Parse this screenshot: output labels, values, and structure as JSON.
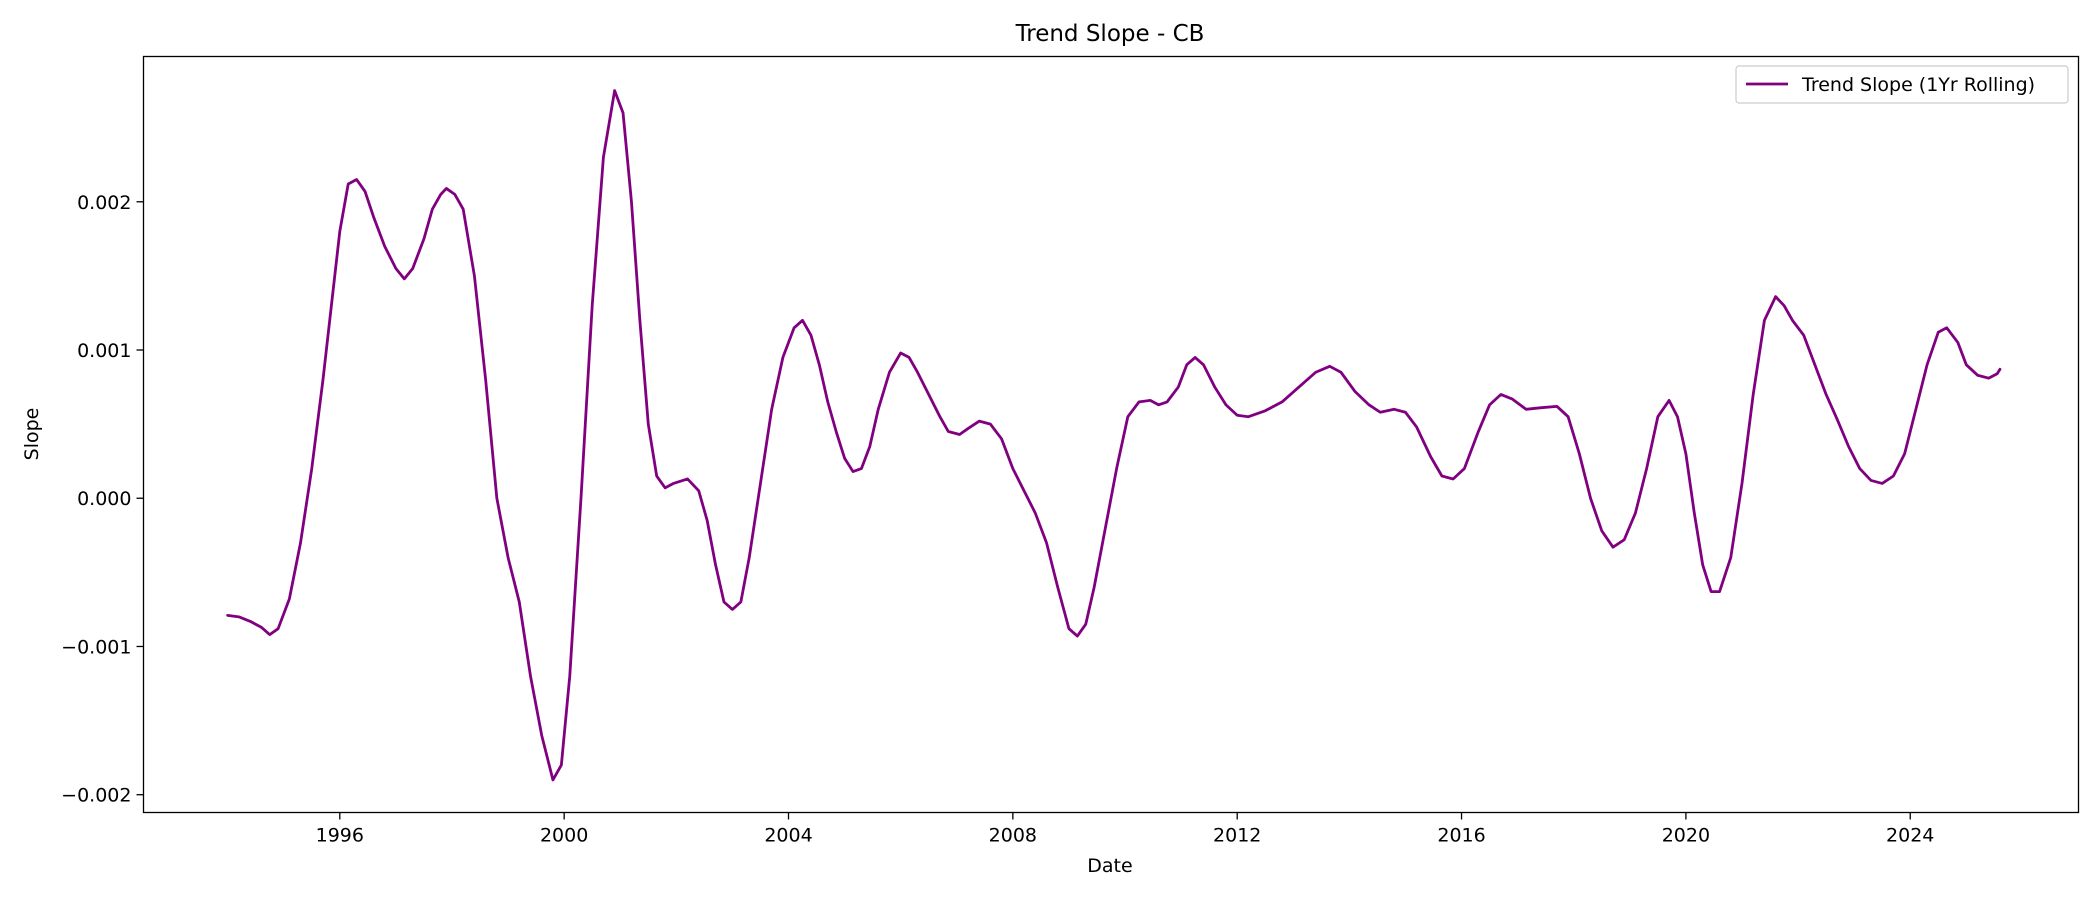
{
  "chart_data": {
    "type": "line",
    "title": "Trend Slope - CB",
    "xlabel": "Date",
    "ylabel": "Slope",
    "xlim": [
      1992.5,
      2027.0
    ],
    "ylim": [
      -0.00212,
      0.00298
    ],
    "x_ticks": [
      1996,
      2000,
      2004,
      2008,
      2012,
      2016,
      2020,
      2024
    ],
    "x_tick_labels": [
      "1996",
      "2000",
      "2004",
      "2008",
      "2012",
      "2016",
      "2020",
      "2024"
    ],
    "y_ticks": [
      -0.002,
      -0.001,
      0.0,
      0.001,
      0.002
    ],
    "y_tick_labels": [
      "−0.002",
      "−0.001",
      "0.000",
      "0.001",
      "0.002"
    ],
    "grid": false,
    "legend_position": "top-right",
    "series": [
      {
        "name": "Trend Slope (1Yr Rolling)",
        "color": "#800080",
        "points": [
          [
            1994.0,
            -0.00079
          ],
          [
            1994.2,
            -0.0008
          ],
          [
            1994.4,
            -0.00083
          ],
          [
            1994.6,
            -0.00087
          ],
          [
            1994.75,
            -0.00092
          ],
          [
            1994.9,
            -0.00088
          ],
          [
            1995.1,
            -0.00068
          ],
          [
            1995.3,
            -0.0003
          ],
          [
            1995.5,
            0.0002
          ],
          [
            1995.7,
            0.0008
          ],
          [
            1995.85,
            0.0013
          ],
          [
            1996.0,
            0.0018
          ],
          [
            1996.15,
            0.00212
          ],
          [
            1996.3,
            0.00215
          ],
          [
            1996.45,
            0.00207
          ],
          [
            1996.6,
            0.0019
          ],
          [
            1996.8,
            0.0017
          ],
          [
            1997.0,
            0.00155
          ],
          [
            1997.15,
            0.00148
          ],
          [
            1997.3,
            0.00155
          ],
          [
            1997.5,
            0.00175
          ],
          [
            1997.65,
            0.00195
          ],
          [
            1997.8,
            0.00205
          ],
          [
            1997.9,
            0.00209
          ],
          [
            1998.05,
            0.00205
          ],
          [
            1998.2,
            0.00195
          ],
          [
            1998.4,
            0.0015
          ],
          [
            1998.6,
            0.0008
          ],
          [
            1998.8,
            0.0
          ],
          [
            1999.0,
            -0.0004
          ],
          [
            1999.2,
            -0.0007
          ],
          [
            1999.4,
            -0.0012
          ],
          [
            1999.6,
            -0.0016
          ],
          [
            1999.8,
            -0.0019
          ],
          [
            1999.95,
            -0.0018
          ],
          [
            2000.1,
            -0.0012
          ],
          [
            2000.3,
            0.0
          ],
          [
            2000.5,
            0.0013
          ],
          [
            2000.7,
            0.0023
          ],
          [
            2000.9,
            0.00275
          ],
          [
            2001.05,
            0.0026
          ],
          [
            2001.2,
            0.002
          ],
          [
            2001.35,
            0.0012
          ],
          [
            2001.5,
            0.0005
          ],
          [
            2001.65,
            0.00015
          ],
          [
            2001.8,
            7e-05
          ],
          [
            2001.95,
            0.0001
          ],
          [
            2002.2,
            0.00013
          ],
          [
            2002.4,
            5e-05
          ],
          [
            2002.55,
            -0.00015
          ],
          [
            2002.7,
            -0.00045
          ],
          [
            2002.85,
            -0.0007
          ],
          [
            2003.0,
            -0.00075
          ],
          [
            2003.15,
            -0.0007
          ],
          [
            2003.3,
            -0.0004
          ],
          [
            2003.5,
            0.0001
          ],
          [
            2003.7,
            0.0006
          ],
          [
            2003.9,
            0.00095
          ],
          [
            2004.1,
            0.00115
          ],
          [
            2004.25,
            0.0012
          ],
          [
            2004.4,
            0.0011
          ],
          [
            2004.55,
            0.0009
          ],
          [
            2004.7,
            0.00065
          ],
          [
            2004.85,
            0.00045
          ],
          [
            2005.0,
            0.00027
          ],
          [
            2005.15,
            0.00018
          ],
          [
            2005.3,
            0.0002
          ],
          [
            2005.45,
            0.00035
          ],
          [
            2005.6,
            0.0006
          ],
          [
            2005.8,
            0.00085
          ],
          [
            2006.0,
            0.00098
          ],
          [
            2006.15,
            0.00095
          ],
          [
            2006.3,
            0.00085
          ],
          [
            2006.5,
            0.0007
          ],
          [
            2006.7,
            0.00055
          ],
          [
            2006.85,
            0.00045
          ],
          [
            2007.05,
            0.00043
          ],
          [
            2007.2,
            0.00047
          ],
          [
            2007.4,
            0.00052
          ],
          [
            2007.6,
            0.0005
          ],
          [
            2007.8,
            0.0004
          ],
          [
            2008.0,
            0.0002
          ],
          [
            2008.2,
            5e-05
          ],
          [
            2008.4,
            -0.0001
          ],
          [
            2008.6,
            -0.0003
          ],
          [
            2008.8,
            -0.0006
          ],
          [
            2009.0,
            -0.00088
          ],
          [
            2009.15,
            -0.00093
          ],
          [
            2009.3,
            -0.00085
          ],
          [
            2009.45,
            -0.0006
          ],
          [
            2009.65,
            -0.0002
          ],
          [
            2009.85,
            0.0002
          ],
          [
            2010.05,
            0.00055
          ],
          [
            2010.25,
            0.00065
          ],
          [
            2010.45,
            0.00066
          ],
          [
            2010.6,
            0.00063
          ],
          [
            2010.75,
            0.00065
          ],
          [
            2010.95,
            0.00075
          ],
          [
            2011.1,
            0.0009
          ],
          [
            2011.25,
            0.00095
          ],
          [
            2011.4,
            0.0009
          ],
          [
            2011.6,
            0.00075
          ],
          [
            2011.8,
            0.00063
          ],
          [
            2012.0,
            0.00056
          ],
          [
            2012.2,
            0.00055
          ],
          [
            2012.5,
            0.00059
          ],
          [
            2012.8,
            0.00065
          ],
          [
            2013.1,
            0.00075
          ],
          [
            2013.4,
            0.00085
          ],
          [
            2013.65,
            0.00089
          ],
          [
            2013.85,
            0.00085
          ],
          [
            2014.1,
            0.00072
          ],
          [
            2014.35,
            0.00063
          ],
          [
            2014.55,
            0.00058
          ],
          [
            2014.8,
            0.0006
          ],
          [
            2015.0,
            0.00058
          ],
          [
            2015.2,
            0.00048
          ],
          [
            2015.45,
            0.00028
          ],
          [
            2015.65,
            0.00015
          ],
          [
            2015.85,
            0.00013
          ],
          [
            2016.05,
            0.0002
          ],
          [
            2016.3,
            0.00045
          ],
          [
            2016.5,
            0.00063
          ],
          [
            2016.7,
            0.0007
          ],
          [
            2016.9,
            0.00067
          ],
          [
            2017.15,
            0.0006
          ],
          [
            2017.4,
            0.00061
          ],
          [
            2017.7,
            0.00062
          ],
          [
            2017.9,
            0.00055
          ],
          [
            2018.1,
            0.0003
          ],
          [
            2018.3,
            0.0
          ],
          [
            2018.5,
            -0.00022
          ],
          [
            2018.7,
            -0.00033
          ],
          [
            2018.9,
            -0.00028
          ],
          [
            2019.1,
            -0.0001
          ],
          [
            2019.3,
            0.0002
          ],
          [
            2019.5,
            0.00055
          ],
          [
            2019.7,
            0.00066
          ],
          [
            2019.85,
            0.00055
          ],
          [
            2020.0,
            0.0003
          ],
          [
            2020.15,
            -0.0001
          ],
          [
            2020.3,
            -0.00045
          ],
          [
            2020.45,
            -0.00063
          ],
          [
            2020.6,
            -0.00063
          ],
          [
            2020.8,
            -0.0004
          ],
          [
            2021.0,
            0.0001
          ],
          [
            2021.2,
            0.0007
          ],
          [
            2021.4,
            0.0012
          ],
          [
            2021.6,
            0.00136
          ],
          [
            2021.75,
            0.0013
          ],
          [
            2021.9,
            0.0012
          ],
          [
            2022.1,
            0.0011
          ],
          [
            2022.3,
            0.0009
          ],
          [
            2022.5,
            0.0007
          ],
          [
            2022.7,
            0.00053
          ],
          [
            2022.9,
            0.00035
          ],
          [
            2023.1,
            0.0002
          ],
          [
            2023.3,
            0.00012
          ],
          [
            2023.5,
            0.0001
          ],
          [
            2023.7,
            0.00015
          ],
          [
            2023.9,
            0.0003
          ],
          [
            2024.1,
            0.0006
          ],
          [
            2024.3,
            0.0009
          ],
          [
            2024.5,
            0.00112
          ],
          [
            2024.65,
            0.00115
          ],
          [
            2024.85,
            0.00105
          ],
          [
            2025.0,
            0.0009
          ],
          [
            2025.2,
            0.00083
          ],
          [
            2025.4,
            0.00081
          ],
          [
            2025.55,
            0.00084
          ],
          [
            2025.6,
            0.00087
          ]
        ]
      }
    ]
  }
}
